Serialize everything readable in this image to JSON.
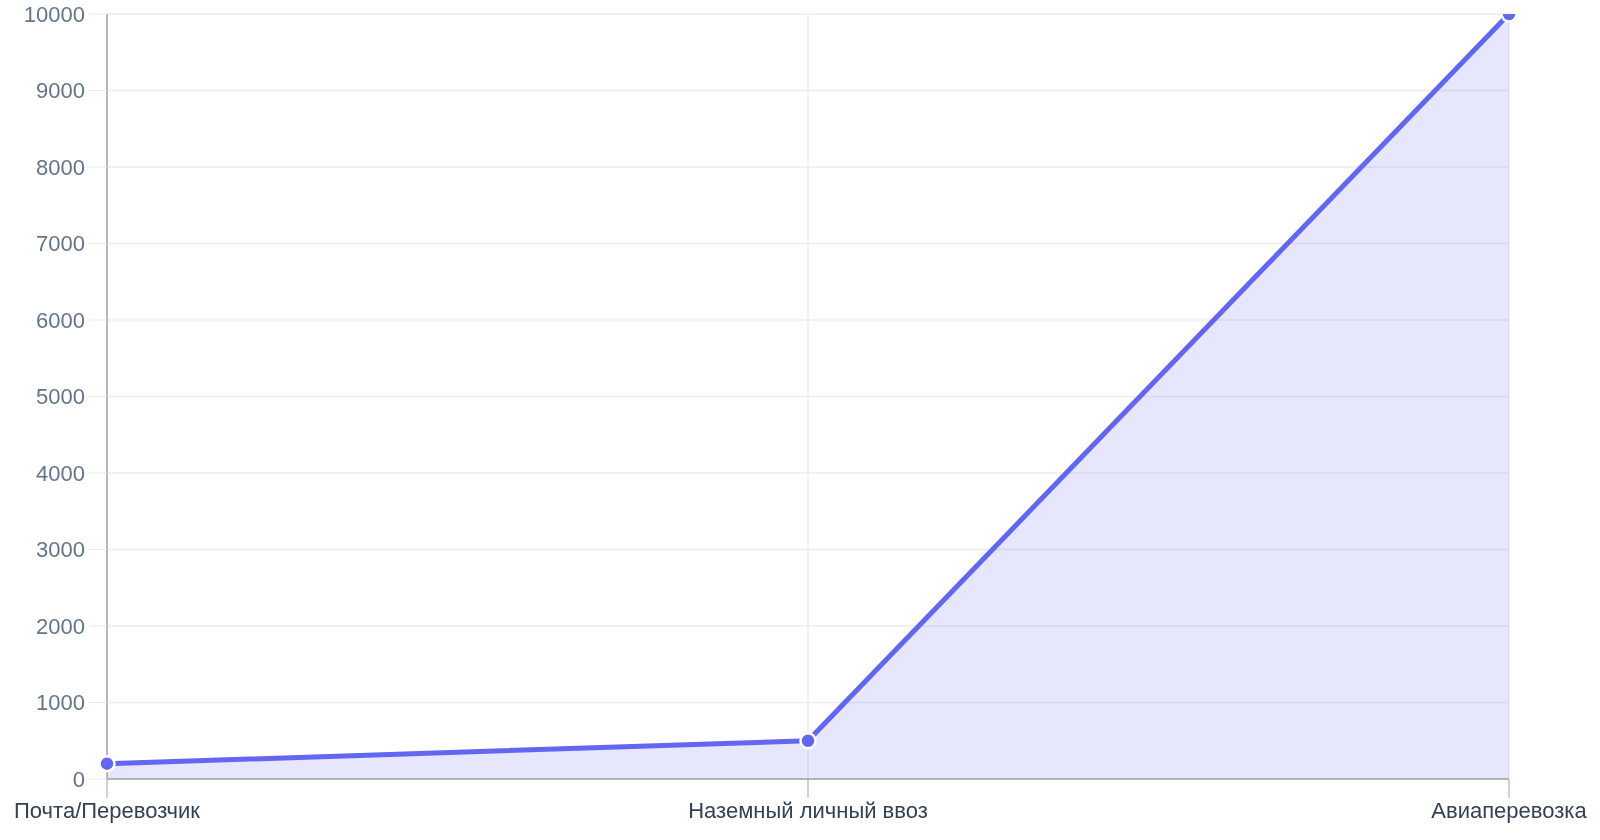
{
  "chart_data": {
    "type": "area",
    "categories": [
      "Почта/Перевозчик",
      "Наземный личный ввоз",
      "Авиаперевозка"
    ],
    "series": [
      {
        "color": "#6366f1",
        "values": [
          200,
          500,
          10000
        ]
      }
    ],
    "ylim": [
      0,
      10000
    ],
    "yticks": [
      0,
      1000,
      2000,
      3000,
      4000,
      5000,
      6000,
      7000,
      8000,
      9000,
      10000
    ],
    "grid": true,
    "marker": "circle"
  }
}
